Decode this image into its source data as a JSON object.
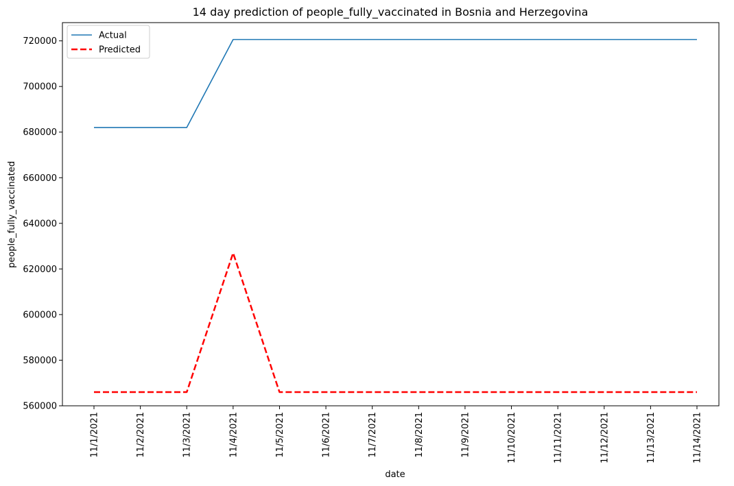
{
  "chart_data": {
    "type": "line",
    "title": "14 day prediction of people_fully_vaccinated in Bosnia and Herzegovina",
    "xlabel": "date",
    "ylabel": "people_fully_vaccinated",
    "categories": [
      "11/1/2021",
      "11/2/2021",
      "11/3/2021",
      "11/4/2021",
      "11/5/2021",
      "11/6/2021",
      "11/7/2021",
      "11/8/2021",
      "11/9/2021",
      "11/10/2021",
      "11/11/2021",
      "11/12/2021",
      "11/13/2021",
      "11/14/2021"
    ],
    "ylim": [
      560000,
      728000
    ],
    "yticks": [
      560000,
      580000,
      600000,
      620000,
      640000,
      660000,
      680000,
      700000,
      720000
    ],
    "grid": false,
    "legend_position": "top-left",
    "series": [
      {
        "name": "Actual",
        "color": "#1f77b4",
        "style": "solid",
        "values": [
          682000,
          682000,
          682000,
          720600,
          720600,
          720600,
          720600,
          720600,
          720600,
          720600,
          720600,
          720600,
          720600,
          720600
        ]
      },
      {
        "name": "Predicted",
        "color": "#ff0000",
        "style": "dashed",
        "values": [
          566000,
          566000,
          566000,
          627000,
          566000,
          566000,
          566000,
          566000,
          566000,
          566000,
          566000,
          566000,
          566000,
          566000
        ]
      }
    ]
  }
}
